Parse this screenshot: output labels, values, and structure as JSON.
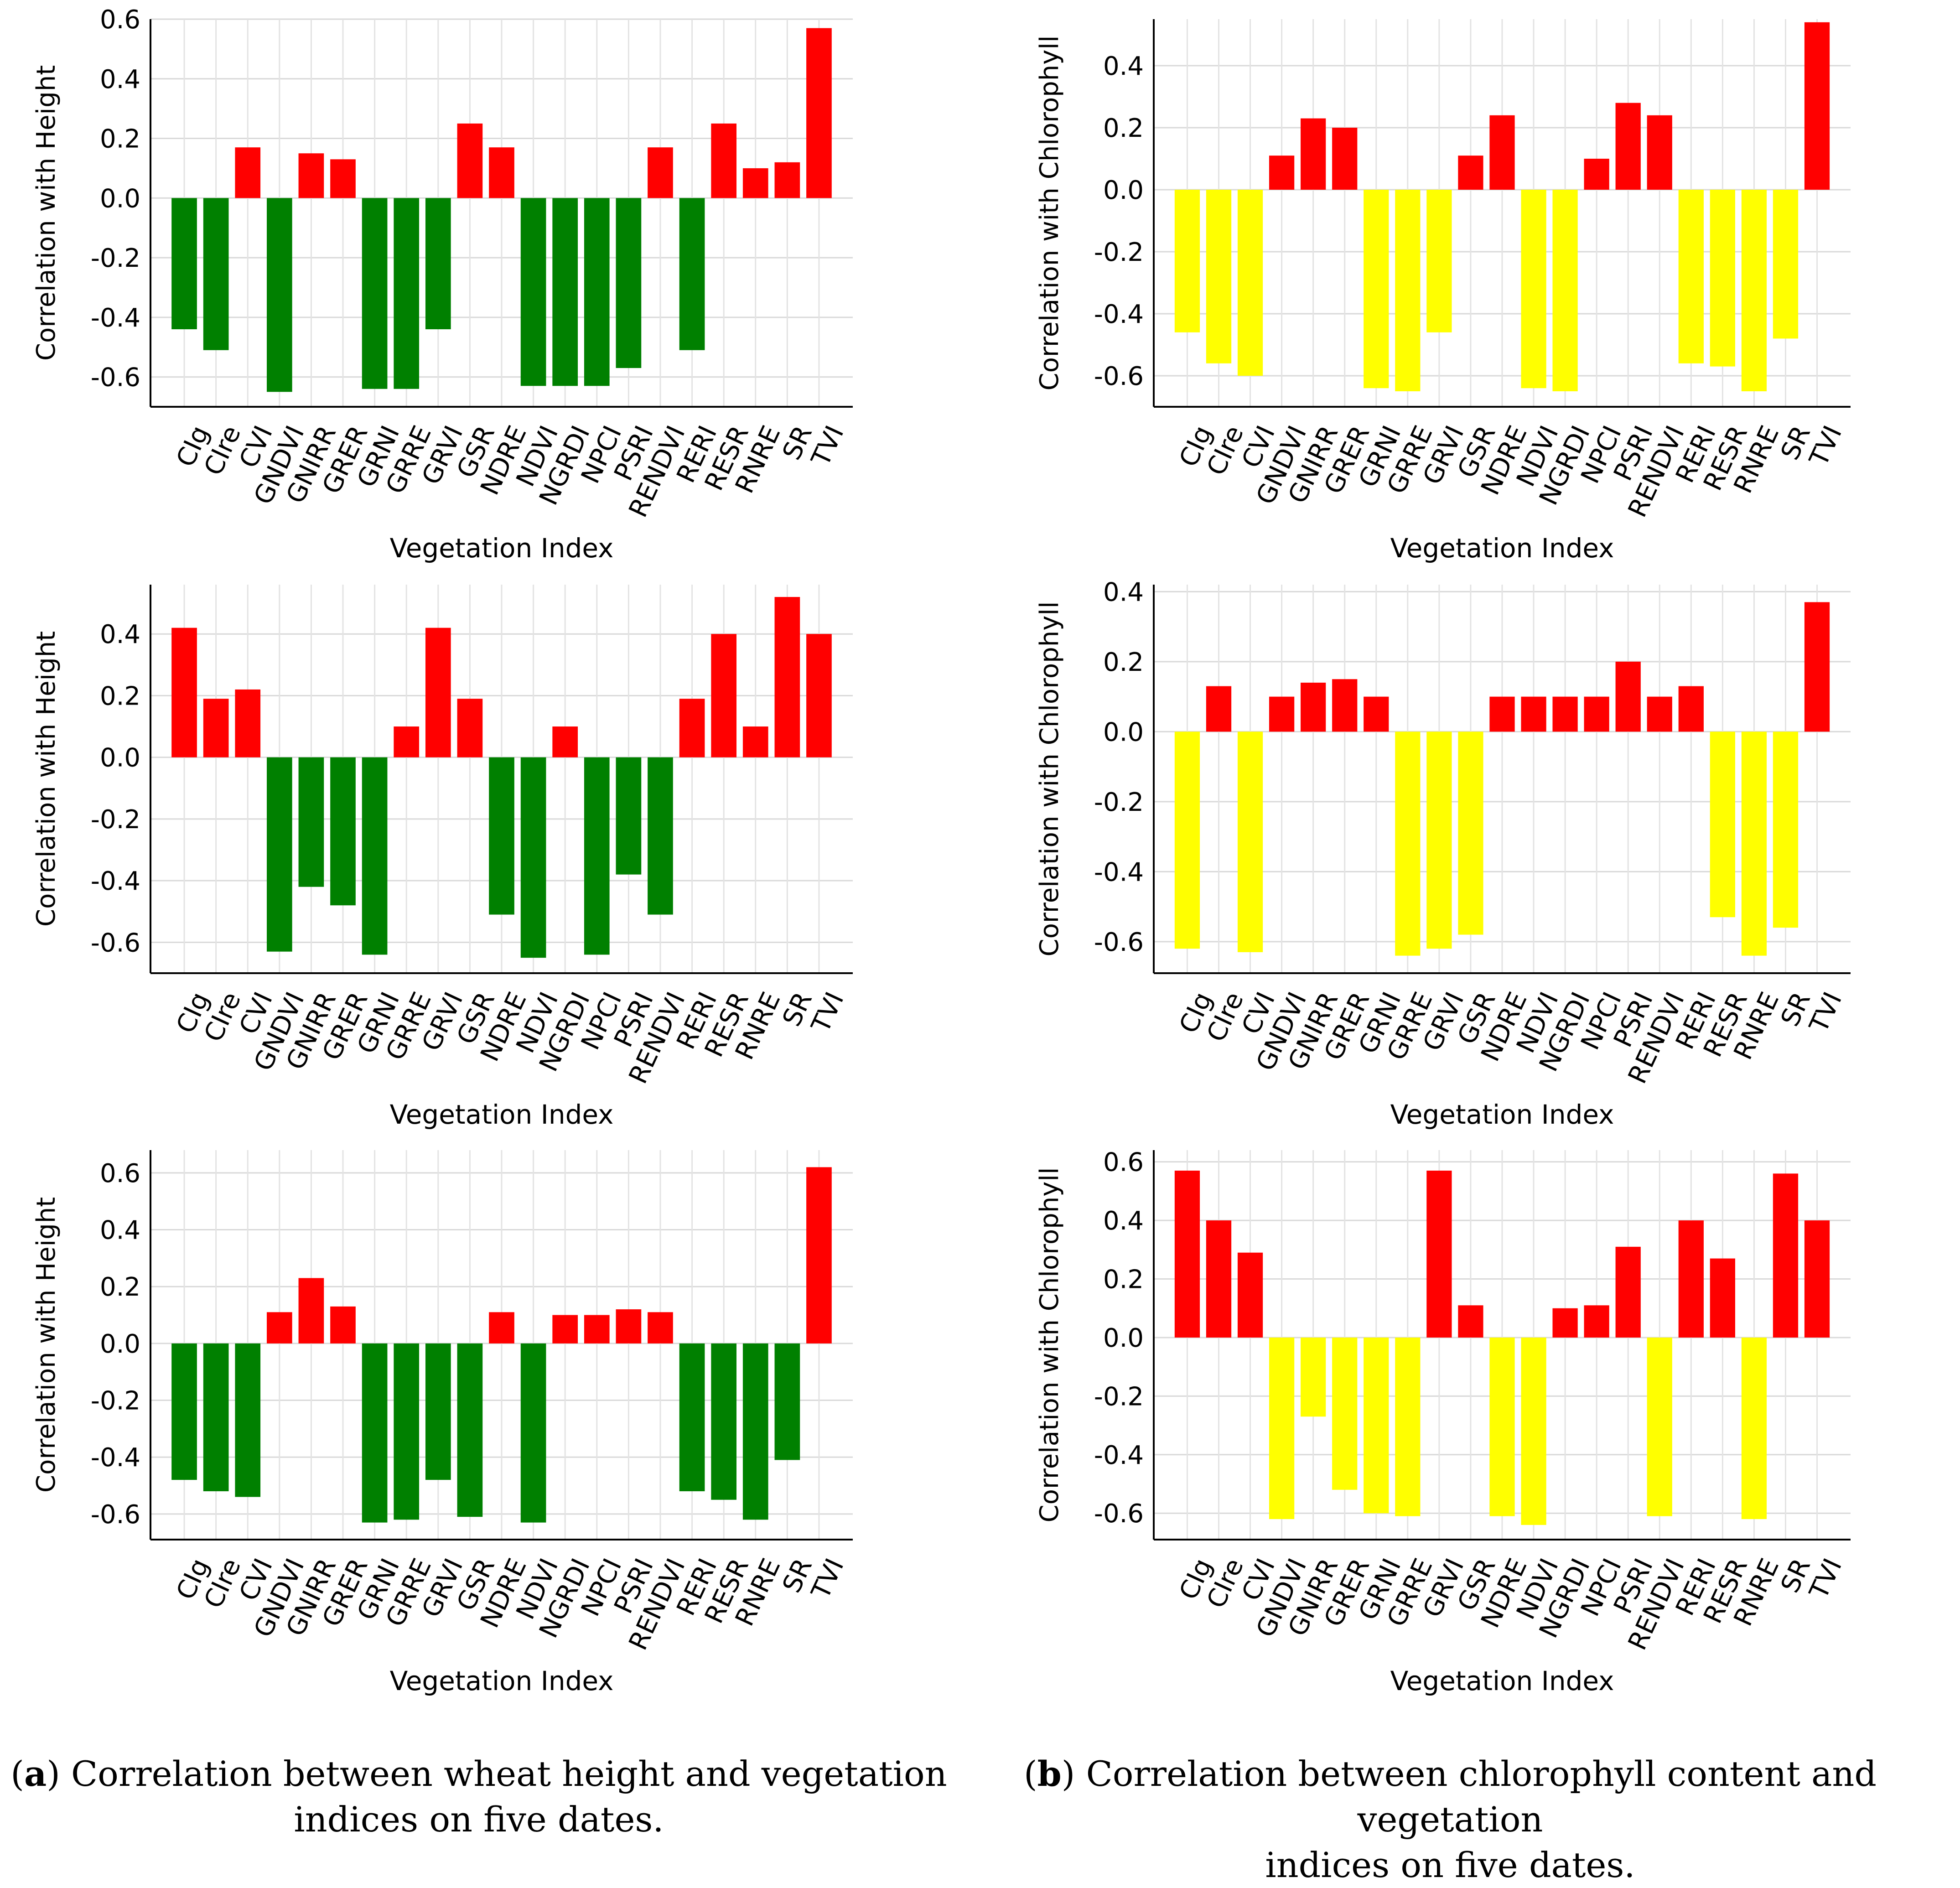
{
  "colors": {
    "height_pos": "#ff0000",
    "height_neg": "#008000",
    "chl_pos": "#ff0000",
    "chl_neg": "#ffff00"
  },
  "chart_data": [
    {
      "type": "bar",
      "column": "a",
      "row": 1,
      "xlabel": "Vegetation Index",
      "ylabel": "Correlation with Height",
      "categories": [
        "CIg",
        "CIre",
        "CVI",
        "GNDVI",
        "GNIRR",
        "GRER",
        "GRNI",
        "GRRE",
        "GRVI",
        "GSR",
        "NDRE",
        "NDVI",
        "NGRDI",
        "NPCI",
        "PSRI",
        "RENDVI",
        "RERI",
        "RESR",
        "RNRE",
        "SR",
        "TVI"
      ],
      "values": [
        -0.44,
        -0.51,
        0.17,
        -0.65,
        0.15,
        0.13,
        -0.64,
        -0.64,
        -0.44,
        0.25,
        0.17,
        -0.63,
        -0.63,
        -0.63,
        -0.57,
        0.17,
        -0.51,
        0.25,
        0.1,
        0.12,
        0.57
      ],
      "ylim": [
        -0.7,
        0.6
      ],
      "yticks": [
        "0.6",
        "0.4",
        "0.2",
        "0.0",
        "-0.2",
        "-0.4",
        "-0.6"
      ],
      "tick_values": [
        0.6,
        0.4,
        0.2,
        0.0,
        -0.2,
        -0.4,
        -0.6
      ]
    },
    {
      "type": "bar",
      "column": "b",
      "row": 1,
      "xlabel": "Vegetation Index",
      "ylabel": "Correlation with Chlorophyll",
      "categories": [
        "CIg",
        "CIre",
        "CVI",
        "GNDVI",
        "GNIRR",
        "GRER",
        "GRNI",
        "GRRE",
        "GRVI",
        "GSR",
        "NDRE",
        "NDVI",
        "NGRDI",
        "NPCI",
        "PSRI",
        "RENDVI",
        "RERI",
        "RESR",
        "RNRE",
        "SR",
        "TVI"
      ],
      "values": [
        -0.46,
        -0.56,
        -0.6,
        0.11,
        0.23,
        0.2,
        -0.64,
        -0.65,
        -0.46,
        0.11,
        0.24,
        -0.64,
        -0.65,
        0.1,
        0.28,
        0.24,
        -0.56,
        -0.57,
        -0.65,
        -0.48,
        0.54
      ],
      "ylim": [
        -0.7,
        0.55
      ],
      "yticks": [
        "0.4",
        "0.2",
        "0.0",
        "-0.2",
        "-0.4",
        "-0.6"
      ],
      "tick_values": [
        0.4,
        0.2,
        0.0,
        -0.2,
        -0.4,
        -0.6
      ]
    },
    {
      "type": "bar",
      "column": "a",
      "row": 2,
      "xlabel": "Vegetation Index",
      "ylabel": "Correlation with Height",
      "categories": [
        "CIg",
        "CIre",
        "CVI",
        "GNDVI",
        "GNIRR",
        "GRER",
        "GRNI",
        "GRRE",
        "GRVI",
        "GSR",
        "NDRE",
        "NDVI",
        "NGRDI",
        "NPCI",
        "PSRI",
        "RENDVI",
        "RERI",
        "RESR",
        "RNRE",
        "SR",
        "TVI"
      ],
      "values": [
        0.42,
        0.19,
        0.22,
        -0.63,
        -0.42,
        -0.48,
        -0.64,
        0.1,
        0.42,
        0.19,
        -0.51,
        -0.65,
        0.1,
        -0.64,
        -0.38,
        -0.51,
        0.19,
        0.4,
        0.1,
        0.52,
        0.4
      ],
      "ylim": [
        -0.7,
        0.56
      ],
      "yticks": [
        "0.4",
        "0.2",
        "0.0",
        "-0.2",
        "-0.4",
        "-0.6"
      ],
      "tick_values": [
        0.4,
        0.2,
        0.0,
        -0.2,
        -0.4,
        -0.6
      ]
    },
    {
      "type": "bar",
      "column": "b",
      "row": 2,
      "xlabel": "Vegetation Index",
      "ylabel": "Correlation with Chlorophyll",
      "categories": [
        "CIg",
        "CIre",
        "CVI",
        "GNDVI",
        "GNIRR",
        "GRER",
        "GRNI",
        "GRRE",
        "GRVI",
        "GSR",
        "NDRE",
        "NDVI",
        "NGRDI",
        "NPCI",
        "PSRI",
        "RENDVI",
        "RERI",
        "RESR",
        "RNRE",
        "SR",
        "TVI"
      ],
      "values": [
        -0.62,
        0.13,
        -0.63,
        0.1,
        0.14,
        0.15,
        0.1,
        -0.64,
        -0.62,
        -0.58,
        0.1,
        0.1,
        0.1,
        0.1,
        0.2,
        0.1,
        0.13,
        -0.53,
        -0.64,
        -0.56,
        0.37
      ],
      "ylim": [
        -0.69,
        0.42
      ],
      "yticks": [
        "0.4",
        "0.2",
        "0.0",
        "-0.2",
        "-0.4",
        "-0.6"
      ],
      "tick_values": [
        0.4,
        0.2,
        0.0,
        -0.2,
        -0.4,
        -0.6
      ]
    },
    {
      "type": "bar",
      "column": "a",
      "row": 3,
      "xlabel": "Vegetation Index",
      "ylabel": "Correlation with Height",
      "categories": [
        "CIg",
        "CIre",
        "CVI",
        "GNDVI",
        "GNIRR",
        "GRER",
        "GRNI",
        "GRRE",
        "GRVI",
        "GSR",
        "NDRE",
        "NDVI",
        "NGRDI",
        "NPCI",
        "PSRI",
        "RENDVI",
        "RERI",
        "RESR",
        "RNRE",
        "SR",
        "TVI"
      ],
      "values": [
        -0.48,
        -0.52,
        -0.54,
        0.11,
        0.23,
        0.13,
        -0.63,
        -0.62,
        -0.48,
        -0.61,
        0.11,
        -0.63,
        0.1,
        0.1,
        0.12,
        0.11,
        -0.52,
        -0.55,
        -0.62,
        -0.41,
        0.62
      ],
      "ylim": [
        -0.69,
        0.68
      ],
      "yticks": [
        "0.6",
        "0.4",
        "0.2",
        "0.0",
        "-0.2",
        "-0.4",
        "-0.6"
      ],
      "tick_values": [
        0.6,
        0.4,
        0.2,
        0.0,
        -0.2,
        -0.4,
        -0.6
      ]
    },
    {
      "type": "bar",
      "column": "b",
      "row": 3,
      "xlabel": "Vegetation Index",
      "ylabel": "Correlation with Chlorophyll",
      "categories": [
        "CIg",
        "CIre",
        "CVI",
        "GNDVI",
        "GNIRR",
        "GRER",
        "GRNI",
        "GRRE",
        "GRVI",
        "GSR",
        "NDRE",
        "NDVI",
        "NGRDI",
        "NPCI",
        "PSRI",
        "RENDVI",
        "RERI",
        "RESR",
        "RNRE",
        "SR",
        "TVI"
      ],
      "values": [
        0.57,
        0.4,
        0.29,
        -0.62,
        -0.27,
        -0.52,
        -0.6,
        -0.61,
        0.57,
        0.11,
        -0.61,
        -0.64,
        0.1,
        0.11,
        0.31,
        -0.61,
        0.4,
        0.27,
        -0.62,
        0.56,
        0.4
      ],
      "ylim": [
        -0.69,
        0.64
      ],
      "yticks": [
        "0.6",
        "0.4",
        "0.2",
        "0.0",
        "-0.2",
        "-0.4",
        "-0.6"
      ],
      "tick_values": [
        0.6,
        0.4,
        0.2,
        0.0,
        -0.2,
        -0.4,
        -0.6
      ]
    }
  ],
  "captions": {
    "a_label": "a",
    "a_text_line1": " Correlation between wheat height and vegetation",
    "a_text_line2": "indices on five dates.",
    "b_label": "b",
    "b_text_line1": " Correlation between chlorophyll content and vegetation",
    "b_text_line2": "indices on five dates."
  }
}
